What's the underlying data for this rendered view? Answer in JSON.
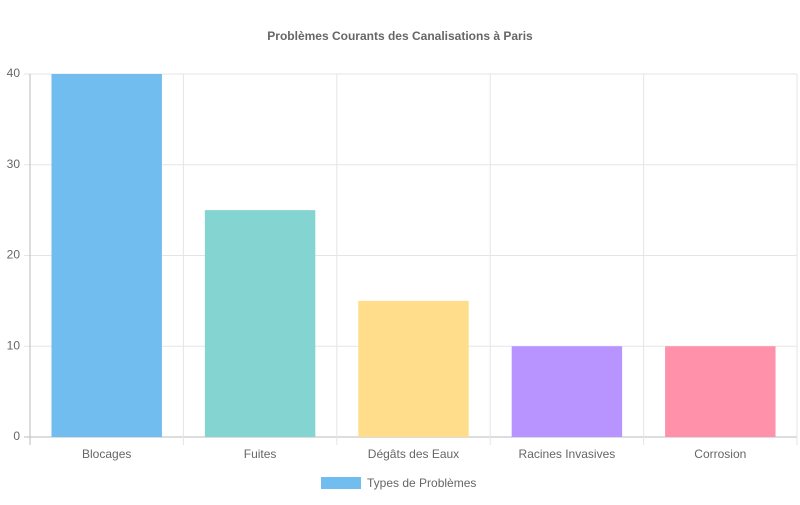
{
  "chart_data": {
    "type": "bar",
    "title": "Problèmes Courants des Canalisations à Paris",
    "categories": [
      "Blocages",
      "Fuites",
      "Dégâts des Eaux",
      "Racines Invasives",
      "Corrosion"
    ],
    "series": [
      {
        "name": "Types de Problèmes",
        "colors": [
          "#72bdf0",
          "#84d4d2",
          "#ffdd8a",
          "#b794ff",
          "#ff92aa"
        ],
        "values": [
          40,
          25,
          15,
          10,
          10
        ]
      }
    ],
    "ylim": [
      0,
      40
    ],
    "yticks": [
      0,
      10,
      20,
      30,
      40
    ],
    "grid": true,
    "legend": "bottom"
  }
}
